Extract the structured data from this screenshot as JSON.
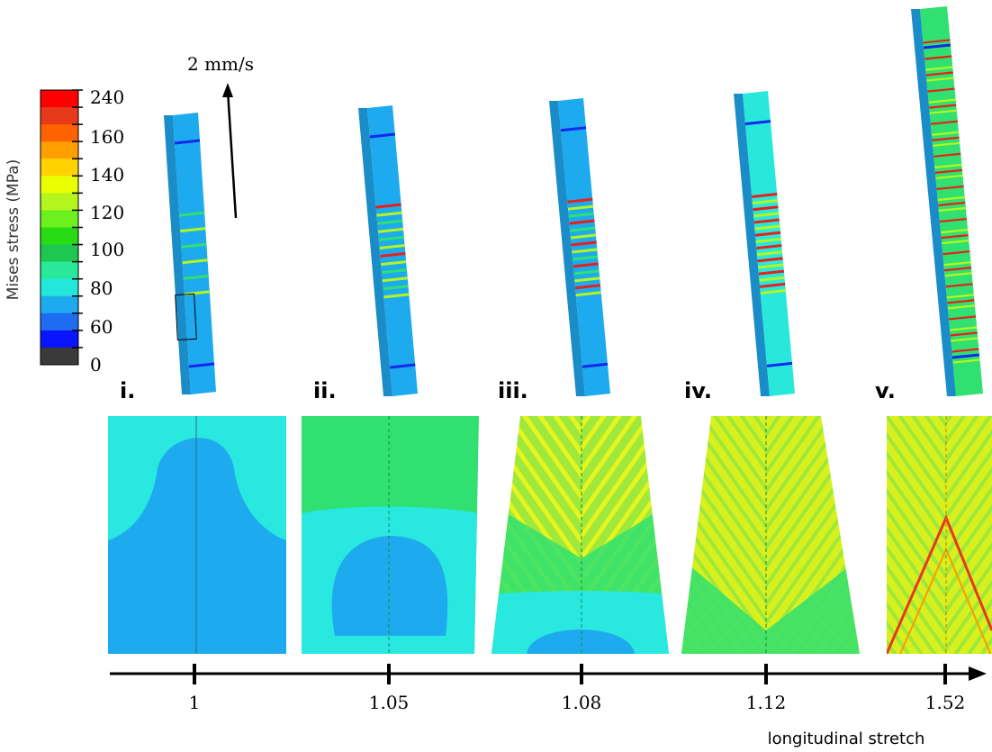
{
  "velocity_label": "2 mm/s",
  "colorbar": {
    "title": "Mises stress (MPa)",
    "ticks": [
      "240",
      "160",
      "140",
      "120",
      "100",
      "80",
      "60",
      "0"
    ],
    "colors": [
      "#ff0000",
      "#e83a1a",
      "#ff6200",
      "#ffa000",
      "#ffd200",
      "#eaff00",
      "#b4f51e",
      "#6cf01e",
      "#28dc14",
      "#1ec850",
      "#28e89a",
      "#22e8dc",
      "#1eaaee",
      "#1e6cf0",
      "#0a14ff",
      "#3a3a3a"
    ]
  },
  "panels": [
    {
      "label": "i.",
      "stretch": "1"
    },
    {
      "label": "ii.",
      "stretch": "1.05"
    },
    {
      "label": "iii.",
      "stretch": "1.08"
    },
    {
      "label": "iv.",
      "stretch": "1.12"
    },
    {
      "label": "v.",
      "stretch": "1.52"
    }
  ],
  "axis_label": "longitudinal stretch"
}
